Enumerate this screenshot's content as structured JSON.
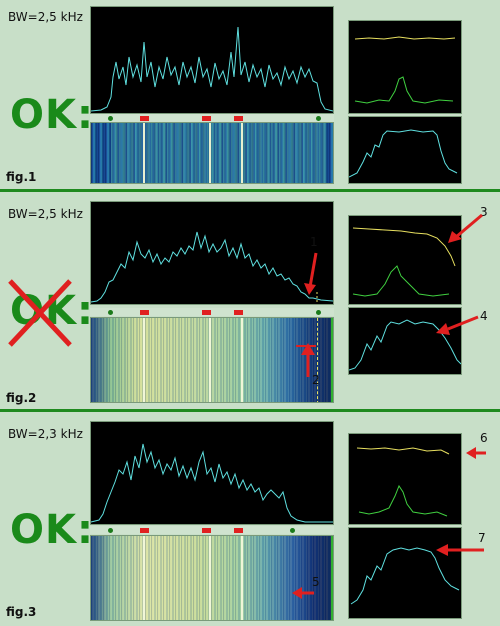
{
  "panels": [
    {
      "bw_label": "BW=2,5 kHz",
      "status": "OK:",
      "fig": "fig.1",
      "crossed": false
    },
    {
      "bw_label": "BW=2,5 kHz",
      "status": "OK:",
      "fig": "fig.2",
      "crossed": true
    },
    {
      "bw_label": "BW=2,3 kHz",
      "status": "OK:",
      "fig": "fig.3",
      "crossed": false
    }
  ],
  "callouts": {
    "n1": "1",
    "n2": "2",
    "n3": "3",
    "n4": "4",
    "n5": "5",
    "n6": "6",
    "n7": "7"
  },
  "colors": {
    "background": "#c8dfc8",
    "divider": "#1f8a1f",
    "ok_green": "#1a8a1a",
    "cross_red": "#e02020",
    "trace_cyan": "#5fe0e0",
    "trace_yellow": "#e8e060",
    "trace_green": "#40d040",
    "arrow_red": "#e02020"
  }
}
